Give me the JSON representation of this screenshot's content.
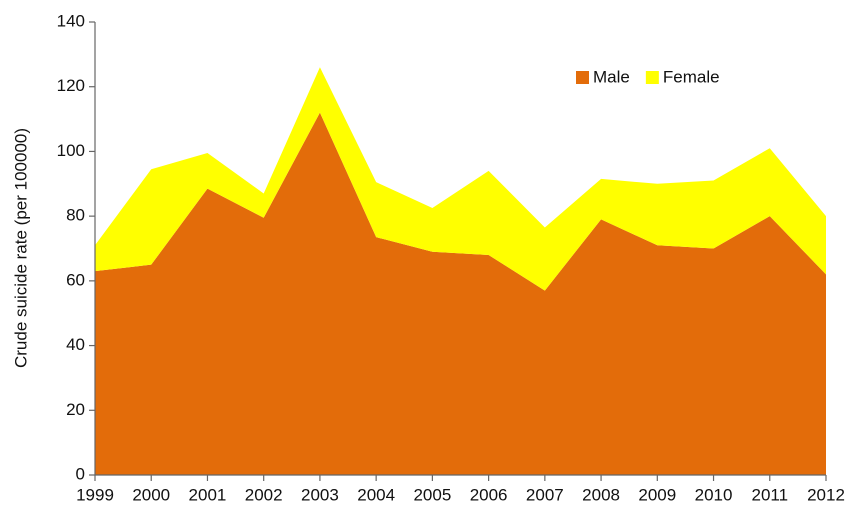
{
  "chart_data": {
    "type": "stacked-area",
    "y_label": "Crude suicide rate (per 100000)",
    "x": [
      1999,
      2000,
      2001,
      2002,
      2003,
      2004,
      2005,
      2006,
      2007,
      2008,
      2009,
      2010,
      2011,
      2012
    ],
    "xlim": [
      1999,
      2012
    ],
    "xticks": [
      1999,
      2000,
      2001,
      2002,
      2003,
      2004,
      2005,
      2006,
      2007,
      2008,
      2009,
      2010,
      2011,
      2012
    ],
    "ylim": [
      0,
      140
    ],
    "yticks": [
      0,
      20,
      40,
      60,
      80,
      100,
      120,
      140
    ],
    "legend": "upper right",
    "series": [
      {
        "name": "Male",
        "color": "#e36c0a",
        "values": [
          63,
          65,
          88.5,
          79.5,
          112,
          73.5,
          69,
          68,
          57,
          79,
          71,
          70,
          80,
          62
        ]
      },
      {
        "name": "Female",
        "color": "#ffff00",
        "values": [
          8,
          29.5,
          11,
          7.5,
          14,
          17,
          13.5,
          26,
          19.5,
          12.5,
          19,
          21,
          21,
          18
        ]
      }
    ]
  }
}
